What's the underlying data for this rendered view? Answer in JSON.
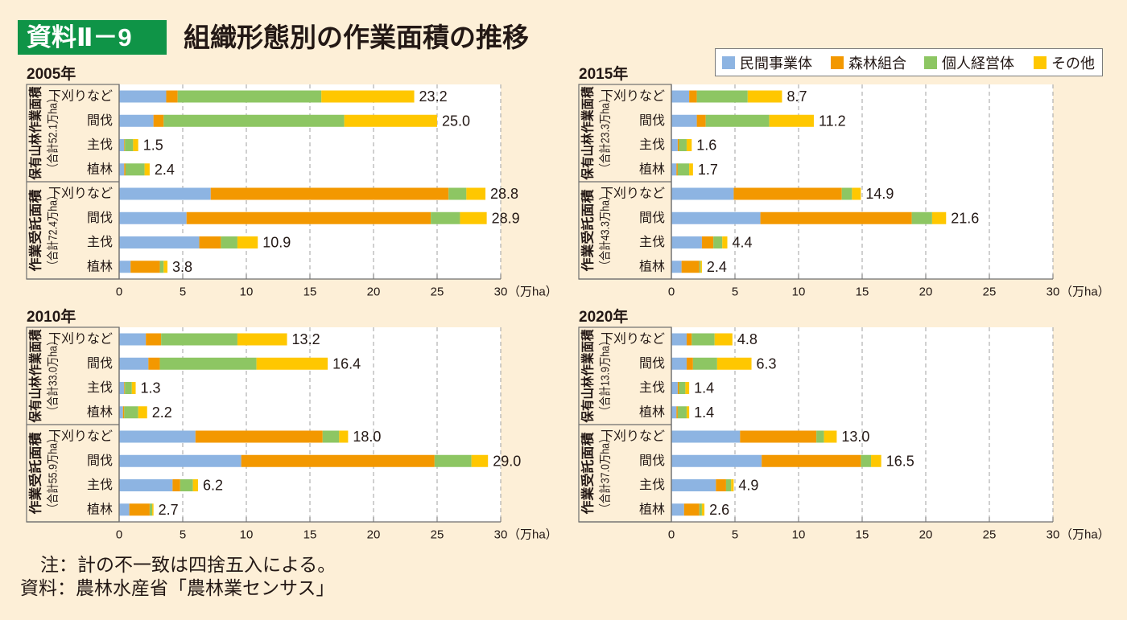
{
  "header": {
    "badge": "資料Ⅱ－9",
    "title": "組織形態別の作業面積の推移"
  },
  "legend": {
    "items": [
      {
        "name": "民間事業体",
        "color": "#8DB4E2"
      },
      {
        "name": "森林組合",
        "color": "#F39800"
      },
      {
        "name": "個人経営体",
        "color": "#8DC663"
      },
      {
        "name": "その他",
        "color": "#FFC700"
      }
    ]
  },
  "chart_data": [
    {
      "type": "bar",
      "orientation": "horizontal",
      "stacked": true,
      "title": "2005年",
      "groups": [
        {
          "label": "保有山林作業面積",
          "sublabel": "（合計52.1万ha）"
        },
        {
          "label": "作業受託面積",
          "sublabel": "（合計72.4万ha）"
        }
      ],
      "categories": [
        "下刈りなど",
        "間伐",
        "主伐",
        "植林",
        "下刈りなど",
        "間伐",
        "主伐",
        "植林"
      ],
      "category_group": [
        0,
        0,
        0,
        0,
        1,
        1,
        1,
        1
      ],
      "series": [
        {
          "name": "民間事業体",
          "values": [
            3.7,
            2.7,
            0.4,
            0.4,
            7.2,
            5.3,
            6.3,
            0.9
          ]
        },
        {
          "name": "森林組合",
          "values": [
            0.9,
            0.8,
            0.05,
            0.1,
            18.7,
            19.2,
            1.7,
            2.3
          ]
        },
        {
          "name": "個人経営体",
          "values": [
            11.3,
            14.2,
            0.65,
            1.5,
            1.4,
            2.3,
            1.3,
            0.3
          ]
        },
        {
          "name": "その他",
          "values": [
            7.3,
            7.3,
            0.4,
            0.4,
            1.5,
            2.1,
            1.6,
            0.3
          ]
        }
      ],
      "totals": [
        "23.2",
        "25.0",
        "1.5",
        "2.4",
        "28.8",
        "28.9",
        "10.9",
        "3.8"
      ],
      "xlim": [
        0,
        30
      ],
      "xticks": [
        "0",
        "5",
        "10",
        "15",
        "20",
        "25",
        "30"
      ],
      "xunit": "（万ha）",
      "xlabel": "",
      "ylabel": "",
      "grid": true,
      "legend": "top-right"
    },
    {
      "type": "bar",
      "orientation": "horizontal",
      "stacked": true,
      "title": "2010年",
      "groups": [
        {
          "label": "保有山林作業面積",
          "sublabel": "（合計33.0万ha）"
        },
        {
          "label": "作業受託面積",
          "sublabel": "（合計55.9万ha）"
        }
      ],
      "categories": [
        "下刈りなど",
        "間伐",
        "主伐",
        "植林",
        "下刈りなど",
        "間伐",
        "主伐",
        "植林"
      ],
      "category_group": [
        0,
        0,
        0,
        0,
        1,
        1,
        1,
        1
      ],
      "series": [
        {
          "name": "民間事業体",
          "values": [
            2.1,
            2.3,
            0.4,
            0.3,
            6.0,
            9.6,
            4.2,
            0.8
          ]
        },
        {
          "name": "森林組合",
          "values": [
            1.2,
            0.9,
            0.05,
            0.1,
            10.0,
            15.2,
            0.6,
            1.6
          ]
        },
        {
          "name": "個人経営体",
          "values": [
            6.0,
            7.6,
            0.55,
            1.1,
            1.3,
            2.9,
            1.0,
            0.2
          ]
        },
        {
          "name": "その他",
          "values": [
            3.9,
            5.6,
            0.3,
            0.7,
            0.7,
            1.3,
            0.4,
            0.1
          ]
        }
      ],
      "totals": [
        "13.2",
        "16.4",
        "1.3",
        "2.2",
        "18.0",
        "29.0",
        "6.2",
        "2.7"
      ],
      "xlim": [
        0,
        30
      ],
      "xticks": [
        "0",
        "5",
        "10",
        "15",
        "20",
        "25",
        "30"
      ],
      "xunit": "（万ha）",
      "xlabel": "",
      "ylabel": "",
      "grid": true,
      "legend": "top-right"
    },
    {
      "type": "bar",
      "orientation": "horizontal",
      "stacked": true,
      "title": "2015年",
      "groups": [
        {
          "label": "保有山林作業面積",
          "sublabel": "（合計23.3万ha）"
        },
        {
          "label": "作業受託面積",
          "sublabel": "（合計43.3万ha）"
        }
      ],
      "categories": [
        "下刈りなど",
        "間伐",
        "主伐",
        "植林",
        "下刈りなど",
        "間伐",
        "主伐",
        "植林"
      ],
      "category_group": [
        0,
        0,
        0,
        0,
        1,
        1,
        1,
        1
      ],
      "series": [
        {
          "name": "民間事業体",
          "values": [
            1.4,
            2.0,
            0.5,
            0.4,
            4.9,
            7.0,
            2.4,
            0.8
          ]
        },
        {
          "name": "森林組合",
          "values": [
            0.6,
            0.7,
            0.1,
            0.1,
            8.5,
            11.9,
            0.9,
            1.4
          ]
        },
        {
          "name": "個人経営体",
          "values": [
            4.0,
            5.0,
            0.6,
            0.9,
            0.8,
            1.6,
            0.7,
            0.1
          ]
        },
        {
          "name": "その他",
          "values": [
            2.7,
            3.5,
            0.4,
            0.3,
            0.7,
            1.1,
            0.4,
            0.1
          ]
        }
      ],
      "totals": [
        "8.7",
        "11.2",
        "1.6",
        "1.7",
        "14.9",
        "21.6",
        "4.4",
        "2.4"
      ],
      "xlim": [
        0,
        30
      ],
      "xticks": [
        "0",
        "5",
        "10",
        "15",
        "20",
        "25",
        "30"
      ],
      "xunit": "（万ha）",
      "xlabel": "",
      "ylabel": "",
      "grid": true,
      "legend": "top-right"
    },
    {
      "type": "bar",
      "orientation": "horizontal",
      "stacked": true,
      "title": "2020年",
      "groups": [
        {
          "label": "保有山林作業面積",
          "sublabel": "（合計13.9万ha）"
        },
        {
          "label": "作業受託面積",
          "sublabel": "（合計37.0万ha）"
        }
      ],
      "categories": [
        "下刈りなど",
        "間伐",
        "主伐",
        "植林",
        "下刈りなど",
        "間伐",
        "主伐",
        "植林"
      ],
      "category_group": [
        0,
        0,
        0,
        0,
        1,
        1,
        1,
        1
      ],
      "series": [
        {
          "name": "民間事業体",
          "values": [
            1.2,
            1.2,
            0.5,
            0.4,
            5.4,
            7.1,
            3.5,
            1.0
          ]
        },
        {
          "name": "森林組合",
          "values": [
            0.4,
            0.5,
            0.1,
            0.1,
            6.0,
            7.8,
            0.8,
            1.2
          ]
        },
        {
          "name": "個人経営体",
          "values": [
            1.8,
            1.9,
            0.5,
            0.7,
            0.6,
            0.8,
            0.4,
            0.2
          ]
        },
        {
          "name": "その他",
          "values": [
            1.4,
            2.7,
            0.3,
            0.2,
            1.0,
            0.8,
            0.2,
            0.2
          ]
        }
      ],
      "totals": [
        "4.8",
        "6.3",
        "1.4",
        "1.4",
        "13.0",
        "16.5",
        "4.9",
        "2.6"
      ],
      "xlim": [
        0,
        30
      ],
      "xticks": [
        "0",
        "5",
        "10",
        "15",
        "20",
        "25",
        "30"
      ],
      "xunit": "（万ha）",
      "xlabel": "",
      "ylabel": "",
      "grid": true,
      "legend": "top-right"
    }
  ],
  "notes": {
    "note": "注：計の不一致は四捨五入による。",
    "source": "資料：農林水産省「農林業センサス」"
  }
}
